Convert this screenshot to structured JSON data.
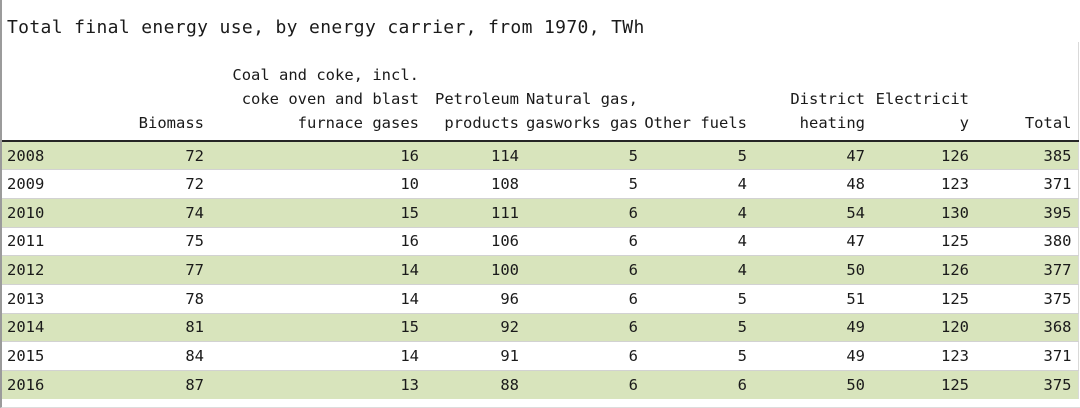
{
  "title": "Total final energy use, by energy carrier, from 1970, TWh",
  "style": {
    "band_color": "#d8e4bc",
    "header_rule_color": "#262626",
    "gridline_color": "#d2d2d2",
    "text_color": "#1a1a1a"
  },
  "table": {
    "columns": [
      {
        "id": "year",
        "header": ""
      },
      {
        "id": "biomass",
        "header": "Biomass"
      },
      {
        "id": "coal",
        "header": "Coal and coke, incl.\ncoke oven and blast\nfurnace gases"
      },
      {
        "id": "petroleum",
        "header": "Petroleum\nproducts"
      },
      {
        "id": "natural_gas",
        "header": "Natural gas,\ngasworks gas"
      },
      {
        "id": "other_fuels",
        "header": "Other fuels"
      },
      {
        "id": "district_heating",
        "header": "District\nheating"
      },
      {
        "id": "electricity",
        "header": "Electricit\ny"
      },
      {
        "id": "total",
        "header": "Total"
      }
    ],
    "rows": [
      {
        "year": "2008",
        "values": [
          72,
          16,
          114,
          5,
          5,
          47,
          126,
          385
        ]
      },
      {
        "year": "2009",
        "values": [
          72,
          10,
          108,
          5,
          4,
          48,
          123,
          371
        ]
      },
      {
        "year": "2010",
        "values": [
          74,
          15,
          111,
          6,
          4,
          54,
          130,
          395
        ]
      },
      {
        "year": "2011",
        "values": [
          75,
          16,
          106,
          6,
          4,
          47,
          125,
          380
        ]
      },
      {
        "year": "2012",
        "values": [
          77,
          14,
          100,
          6,
          4,
          50,
          126,
          377
        ]
      },
      {
        "year": "2013",
        "values": [
          78,
          14,
          96,
          6,
          5,
          51,
          125,
          375
        ]
      },
      {
        "year": "2014",
        "values": [
          81,
          15,
          92,
          6,
          5,
          49,
          120,
          368
        ]
      },
      {
        "year": "2015",
        "values": [
          84,
          14,
          91,
          6,
          5,
          49,
          123,
          371
        ]
      },
      {
        "year": "2016",
        "values": [
          87,
          13,
          88,
          6,
          6,
          50,
          125,
          375
        ]
      }
    ]
  }
}
